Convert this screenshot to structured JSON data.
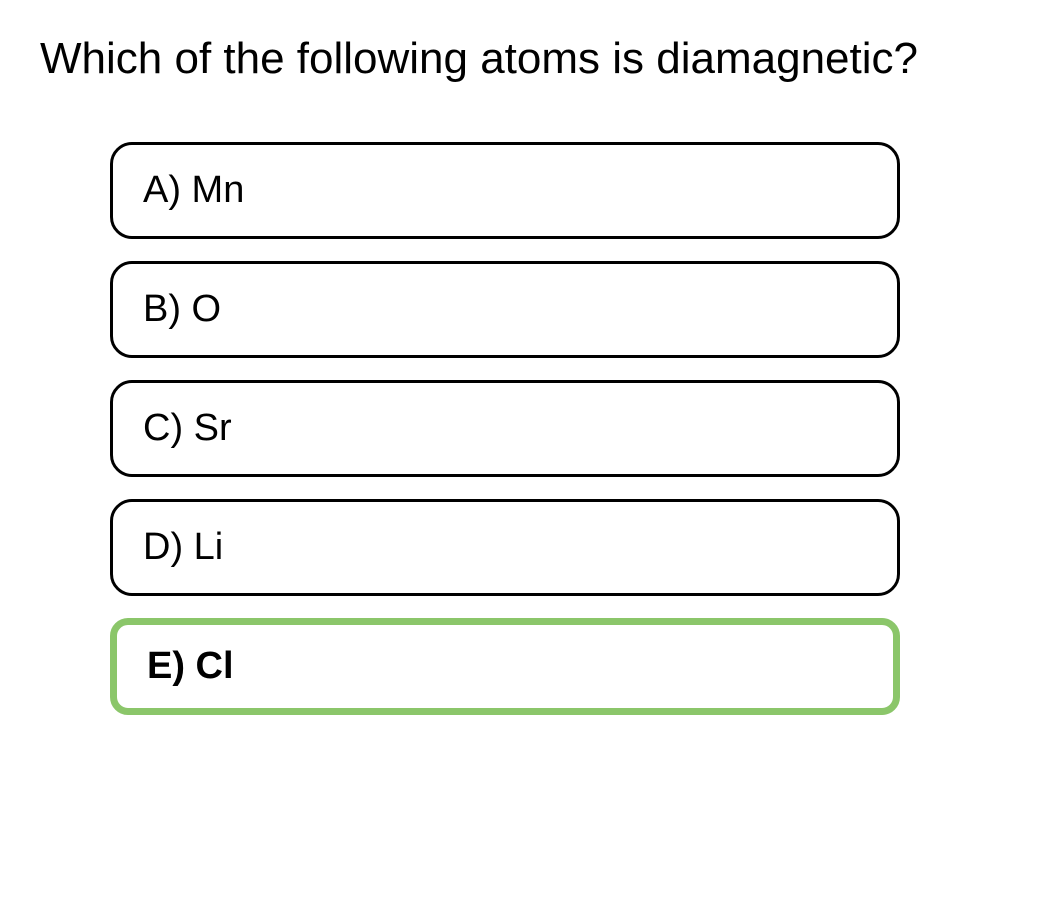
{
  "question": {
    "text": "Which of the following atoms is diamagnetic?"
  },
  "options": [
    {
      "label": "A) Mn",
      "selected": false
    },
    {
      "label": "B) O",
      "selected": false
    },
    {
      "label": "C) Sr",
      "selected": false
    },
    {
      "label": "D) Li",
      "selected": false
    },
    {
      "label": "E) Cl",
      "selected": true
    }
  ],
  "style": {
    "background_color": "#ffffff",
    "text_color": "#000000",
    "option_border_color": "#000000",
    "option_border_width": 3,
    "option_border_radius": 22,
    "selected_border_color": "#8bc66a",
    "selected_border_width": 7,
    "selected_border_radius": 18,
    "question_fontsize": 44,
    "option_fontsize": 38,
    "font_family": "Arial, Helvetica, sans-serif"
  }
}
